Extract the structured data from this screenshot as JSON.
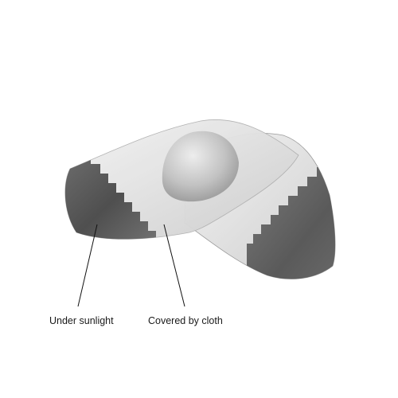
{
  "annotations": {
    "under_sunlight": "Under sunlight",
    "covered_by_cloth": "Covered by cloth"
  },
  "colors": {
    "background": "#ffffff",
    "lens_dark": "#5e5e5e",
    "lens_light": "#e4e4e4",
    "callout_line": "#111111"
  }
}
